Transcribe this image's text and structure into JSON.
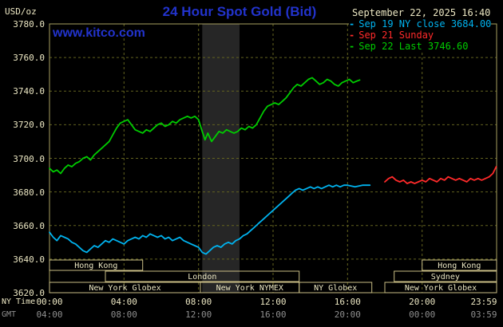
{
  "header": {
    "unit": "USD/oz",
    "title": "24 Hour Spot Gold (Bid)",
    "timestamp": "September 22, 2025 16:40",
    "watermark": "www.kitco.com"
  },
  "axis_footer": {
    "ny_label": "NY Time",
    "gmt_label": "GMT"
  },
  "legend": [
    {
      "marker": "-",
      "label": "Sep 19 NY close 3684.00",
      "color": "#00b2ee"
    },
    {
      "marker": "-",
      "label": "Sep 21 Sunday",
      "color": "#ff2a2a"
    },
    {
      "marker": "-",
      "label": "Sep 22 Last 3746.60",
      "color": "#00cc00"
    }
  ],
  "colors": {
    "background": "#000000",
    "kitco_blue": "#2233cc",
    "cream_text": "#ece7c3",
    "gmt_gray": "#8f8f8f",
    "grid": "#63631f",
    "plot_border": "#a8a060",
    "session_border": "#c9bd85",
    "band": "#262626",
    "cyan": "#00b2ee",
    "red": "#ff2a2a",
    "green": "#00cc00"
  },
  "chart_data": {
    "type": "line",
    "title": "24 Hour Spot Gold (Bid)",
    "ylabel": "USD/oz",
    "ylim": [
      3620,
      3780
    ],
    "xlim_hours": [
      0,
      24
    ],
    "grid": true,
    "legend_position": "top-right",
    "yticks": [
      3620,
      3640,
      3660,
      3680,
      3700,
      3720,
      3740,
      3760,
      3780
    ],
    "xticks": [
      {
        "hour": 0,
        "ny": "00:00",
        "gmt": "04:00"
      },
      {
        "hour": 4,
        "ny": "04:00",
        "gmt": "08:00"
      },
      {
        "hour": 8,
        "ny": "08:00",
        "gmt": "12:00"
      },
      {
        "hour": 12,
        "ny": "12:00",
        "gmt": "16:00"
      },
      {
        "hour": 16,
        "ny": "16:00",
        "gmt": "20:00"
      },
      {
        "hour": 20,
        "ny": "20:00",
        "gmt": "00:00"
      },
      {
        "hour": 23.983,
        "ny": "23:59",
        "gmt": "03:59"
      }
    ],
    "shaded_band_hours": [
      8.2,
      10.2
    ],
    "sessions": [
      {
        "row": 0,
        "start": 0,
        "end": 5,
        "label": "Hong Kong"
      },
      {
        "row": 0,
        "start": 20,
        "end": 24,
        "label": "Hong Kong"
      },
      {
        "row": 1,
        "start": 3,
        "end": 13.4,
        "label": "London"
      },
      {
        "row": 1,
        "start": 18.5,
        "end": 24,
        "label": "Sydney"
      },
      {
        "row": 2,
        "start": 0,
        "end": 8.1,
        "label": "New York Globex"
      },
      {
        "row": 2,
        "start": 8.1,
        "end": 13.4,
        "label": "New York NYMEX"
      },
      {
        "row": 2,
        "start": 13.4,
        "end": 17.3,
        "label": "NY Globex"
      },
      {
        "row": 2,
        "start": 18,
        "end": 24,
        "label": "New York Globex"
      }
    ],
    "series": [
      {
        "name": "Sep 19 NY close",
        "color": "#00b2ee",
        "close_value": 3684.0,
        "points": [
          [
            0,
            3656
          ],
          [
            0.2,
            3653
          ],
          [
            0.4,
            3651
          ],
          [
            0.6,
            3654
          ],
          [
            0.8,
            3653
          ],
          [
            1,
            3652
          ],
          [
            1.2,
            3650
          ],
          [
            1.4,
            3649
          ],
          [
            1.6,
            3647
          ],
          [
            1.8,
            3645
          ],
          [
            2,
            3644
          ],
          [
            2.2,
            3646
          ],
          [
            2.4,
            3648
          ],
          [
            2.6,
            3647
          ],
          [
            2.8,
            3649
          ],
          [
            3,
            3651
          ],
          [
            3.2,
            3650
          ],
          [
            3.4,
            3652
          ],
          [
            3.6,
            3651
          ],
          [
            3.8,
            3650
          ],
          [
            4,
            3649
          ],
          [
            4.2,
            3651
          ],
          [
            4.4,
            3652
          ],
          [
            4.6,
            3653
          ],
          [
            4.8,
            3652
          ],
          [
            5,
            3654
          ],
          [
            5.2,
            3653
          ],
          [
            5.4,
            3655
          ],
          [
            5.6,
            3654
          ],
          [
            5.8,
            3653
          ],
          [
            6,
            3654
          ],
          [
            6.2,
            3652
          ],
          [
            6.4,
            3653
          ],
          [
            6.6,
            3651
          ],
          [
            6.8,
            3652
          ],
          [
            7,
            3653
          ],
          [
            7.2,
            3651
          ],
          [
            7.4,
            3650
          ],
          [
            7.6,
            3649
          ],
          [
            7.8,
            3648
          ],
          [
            8,
            3647
          ],
          [
            8.2,
            3644
          ],
          [
            8.4,
            3643
          ],
          [
            8.6,
            3645
          ],
          [
            8.8,
            3647
          ],
          [
            9,
            3648
          ],
          [
            9.2,
            3647
          ],
          [
            9.4,
            3649
          ],
          [
            9.6,
            3650
          ],
          [
            9.8,
            3649
          ],
          [
            10,
            3651
          ],
          [
            10.2,
            3652
          ],
          [
            10.4,
            3654
          ],
          [
            10.6,
            3655
          ],
          [
            10.8,
            3657
          ],
          [
            11,
            3659
          ],
          [
            11.2,
            3661
          ],
          [
            11.4,
            3663
          ],
          [
            11.6,
            3665
          ],
          [
            11.8,
            3667
          ],
          [
            12,
            3669
          ],
          [
            12.2,
            3671
          ],
          [
            12.4,
            3673
          ],
          [
            12.6,
            3675
          ],
          [
            12.8,
            3677
          ],
          [
            13,
            3679
          ],
          [
            13.2,
            3681
          ],
          [
            13.4,
            3682
          ],
          [
            13.6,
            3681
          ],
          [
            13.8,
            3682
          ],
          [
            14,
            3683
          ],
          [
            14.2,
            3682
          ],
          [
            14.4,
            3683
          ],
          [
            14.6,
            3682
          ],
          [
            14.8,
            3683
          ],
          [
            15,
            3684
          ],
          [
            15.2,
            3683
          ],
          [
            15.4,
            3684
          ],
          [
            15.6,
            3683
          ],
          [
            15.8,
            3684
          ],
          [
            16,
            3684
          ],
          [
            16.4,
            3683
          ],
          [
            16.8,
            3684
          ],
          [
            17.2,
            3684
          ]
        ]
      },
      {
        "name": "Sep 21 Sunday",
        "color": "#ff2a2a",
        "points": [
          [
            18,
            3686
          ],
          [
            18.2,
            3688
          ],
          [
            18.4,
            3689
          ],
          [
            18.6,
            3687
          ],
          [
            18.8,
            3686
          ],
          [
            19,
            3687
          ],
          [
            19.2,
            3685
          ],
          [
            19.4,
            3686
          ],
          [
            19.6,
            3685
          ],
          [
            19.8,
            3686
          ],
          [
            20,
            3687
          ],
          [
            20.2,
            3686
          ],
          [
            20.4,
            3688
          ],
          [
            20.6,
            3687
          ],
          [
            20.8,
            3686
          ],
          [
            21,
            3688
          ],
          [
            21.2,
            3687
          ],
          [
            21.4,
            3689
          ],
          [
            21.6,
            3688
          ],
          [
            21.8,
            3687
          ],
          [
            22,
            3688
          ],
          [
            22.2,
            3687
          ],
          [
            22.4,
            3686
          ],
          [
            22.6,
            3688
          ],
          [
            22.8,
            3687
          ],
          [
            23,
            3688
          ],
          [
            23.2,
            3687
          ],
          [
            23.4,
            3688
          ],
          [
            23.6,
            3689
          ],
          [
            23.8,
            3691
          ],
          [
            23.98,
            3695
          ]
        ]
      },
      {
        "name": "Sep 22 Last",
        "color": "#00cc00",
        "last_value": 3746.6,
        "points": [
          [
            0,
            3694
          ],
          [
            0.2,
            3692
          ],
          [
            0.4,
            3693
          ],
          [
            0.6,
            3691
          ],
          [
            0.8,
            3694
          ],
          [
            1,
            3696
          ],
          [
            1.2,
            3695
          ],
          [
            1.4,
            3697
          ],
          [
            1.6,
            3698
          ],
          [
            1.8,
            3700
          ],
          [
            2,
            3701
          ],
          [
            2.2,
            3699
          ],
          [
            2.4,
            3702
          ],
          [
            2.6,
            3704
          ],
          [
            2.8,
            3706
          ],
          [
            3,
            3708
          ],
          [
            3.2,
            3710
          ],
          [
            3.4,
            3714
          ],
          [
            3.6,
            3718
          ],
          [
            3.8,
            3721
          ],
          [
            4,
            3722
          ],
          [
            4.2,
            3723
          ],
          [
            4.4,
            3720
          ],
          [
            4.6,
            3717
          ],
          [
            4.8,
            3716
          ],
          [
            5,
            3715
          ],
          [
            5.2,
            3717
          ],
          [
            5.4,
            3716
          ],
          [
            5.6,
            3718
          ],
          [
            5.8,
            3720
          ],
          [
            6,
            3721
          ],
          [
            6.2,
            3719
          ],
          [
            6.4,
            3720
          ],
          [
            6.6,
            3722
          ],
          [
            6.8,
            3721
          ],
          [
            7,
            3723
          ],
          [
            7.2,
            3724
          ],
          [
            7.4,
            3725
          ],
          [
            7.6,
            3724
          ],
          [
            7.8,
            3725
          ],
          [
            8,
            3723
          ],
          [
            8.2,
            3716
          ],
          [
            8.35,
            3711
          ],
          [
            8.5,
            3715
          ],
          [
            8.7,
            3710
          ],
          [
            8.9,
            3713
          ],
          [
            9.1,
            3716
          ],
          [
            9.3,
            3715
          ],
          [
            9.5,
            3717
          ],
          [
            9.7,
            3716
          ],
          [
            9.9,
            3715
          ],
          [
            10.1,
            3716
          ],
          [
            10.3,
            3718
          ],
          [
            10.5,
            3717
          ],
          [
            10.7,
            3719
          ],
          [
            10.9,
            3718
          ],
          [
            11.1,
            3720
          ],
          [
            11.3,
            3724
          ],
          [
            11.5,
            3728
          ],
          [
            11.7,
            3731
          ],
          [
            11.9,
            3732
          ],
          [
            12.1,
            3733
          ],
          [
            12.3,
            3732
          ],
          [
            12.5,
            3734
          ],
          [
            12.7,
            3736
          ],
          [
            12.9,
            3739
          ],
          [
            13.1,
            3742
          ],
          [
            13.3,
            3744
          ],
          [
            13.5,
            3743
          ],
          [
            13.7,
            3745
          ],
          [
            13.9,
            3747
          ],
          [
            14.1,
            3748
          ],
          [
            14.3,
            3746
          ],
          [
            14.5,
            3744
          ],
          [
            14.7,
            3745
          ],
          [
            14.9,
            3747
          ],
          [
            15.1,
            3746
          ],
          [
            15.3,
            3744
          ],
          [
            15.5,
            3743
          ],
          [
            15.7,
            3745
          ],
          [
            15.9,
            3746
          ],
          [
            16.1,
            3747
          ],
          [
            16.3,
            3745
          ],
          [
            16.5,
            3746
          ],
          [
            16.65,
            3746.6
          ]
        ]
      }
    ]
  }
}
